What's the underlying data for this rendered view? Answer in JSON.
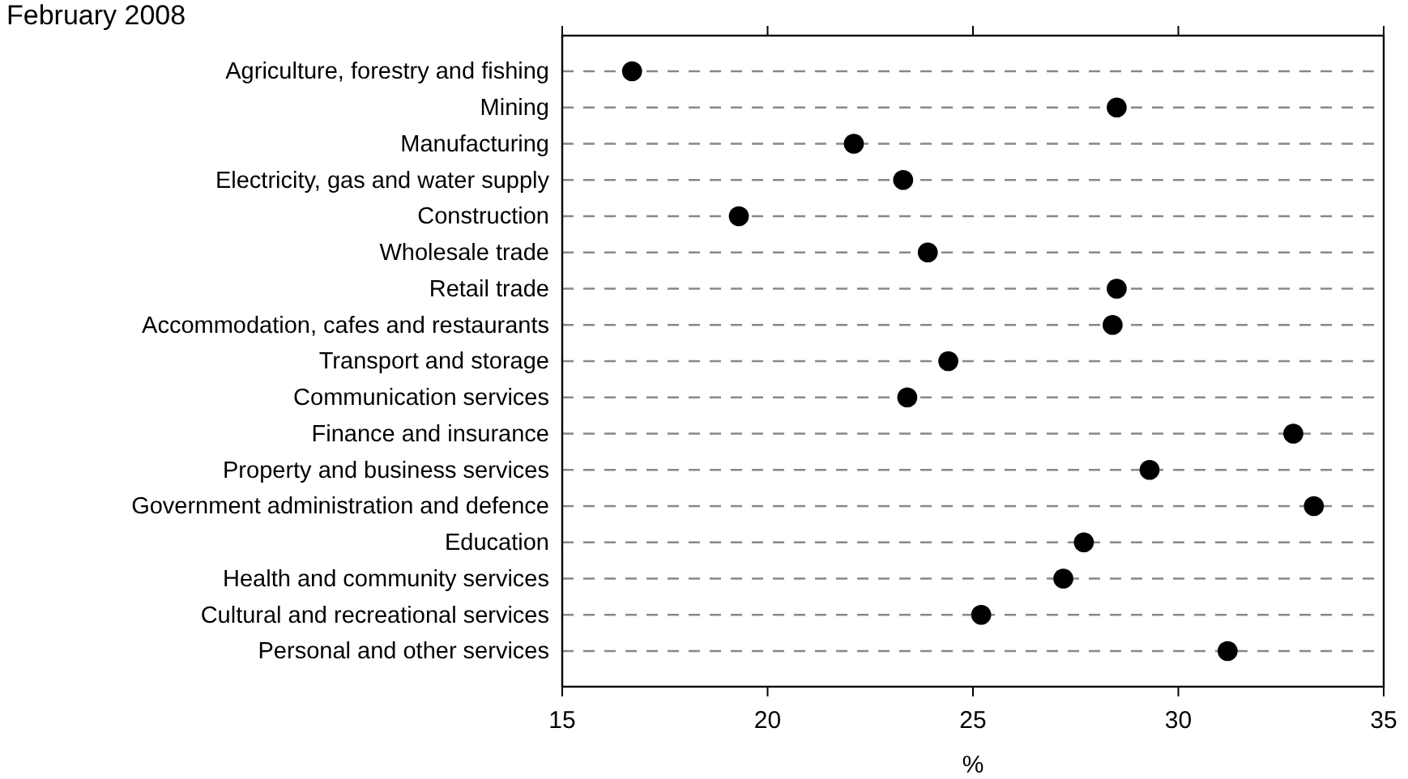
{
  "chart_data": {
    "type": "scatter",
    "orientation": "horizontal",
    "title": "February 2008",
    "xlabel": "%",
    "categories": [
      "Agriculture, forestry and fishing",
      "Mining",
      "Manufacturing",
      "Electricity, gas and water supply",
      "Construction",
      "Wholesale trade",
      "Retail trade",
      "Accommodation, cafes and restaurants",
      "Transport and storage",
      "Communication services",
      "Finance and insurance",
      "Property and business services",
      "Government administration and defence",
      "Education",
      "Health and community services",
      "Cultural and recreational services",
      "Personal and other services"
    ],
    "values": [
      16.7,
      28.5,
      22.1,
      23.3,
      19.3,
      23.9,
      28.5,
      28.4,
      24.4,
      23.4,
      32.8,
      29.3,
      33.3,
      27.7,
      27.2,
      25.2,
      31.2
    ],
    "color": "#000000",
    "marker": "circle",
    "xlim": [
      15,
      35
    ],
    "xticks": [
      15,
      20,
      25,
      30,
      35
    ],
    "grid": "y"
  }
}
